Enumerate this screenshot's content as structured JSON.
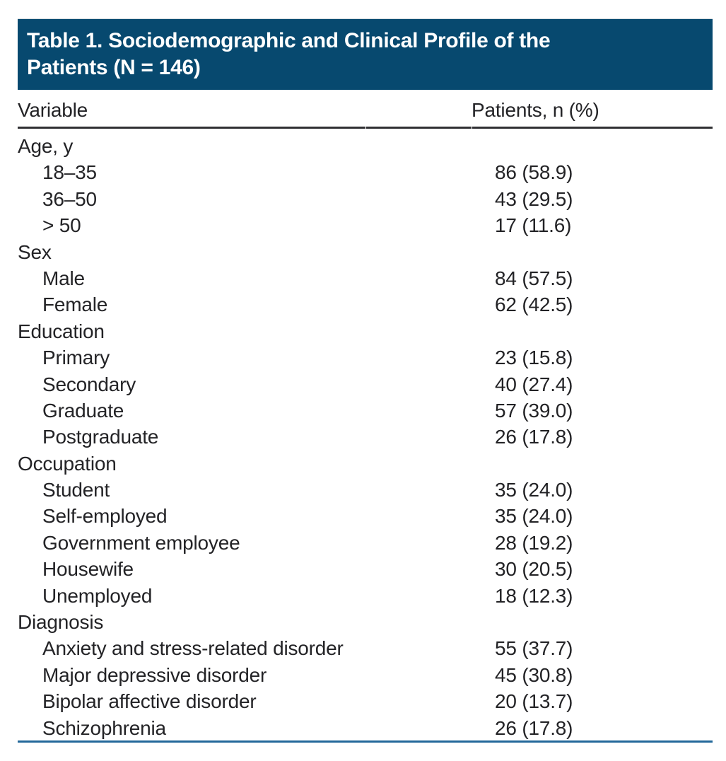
{
  "table": {
    "title_line1": "Table 1. Sociodemographic and Clinical Profile of the",
    "title_line2": "Patients (N = 146)",
    "title_full": "Table 1. Sociodemographic and Clinical Profile of the Patients (N = 146)",
    "sample_size": 146,
    "columns": {
      "variable": "Variable",
      "patients": "Patients, n (%)"
    },
    "rows": [
      {
        "type": "section",
        "label": "Age, y"
      },
      {
        "type": "item",
        "label": "18–35",
        "value": "86 (58.9)"
      },
      {
        "type": "item",
        "label": "36–50",
        "value": "43 (29.5)"
      },
      {
        "type": "item",
        "label": "> 50",
        "value": "17 (11.6)"
      },
      {
        "type": "section",
        "label": "Sex"
      },
      {
        "type": "item",
        "label": "Male",
        "value": "84 (57.5)"
      },
      {
        "type": "item",
        "label": "Female",
        "value": "62 (42.5)"
      },
      {
        "type": "section",
        "label": "Education"
      },
      {
        "type": "item",
        "label": "Primary",
        "value": "23 (15.8)"
      },
      {
        "type": "item",
        "label": "Secondary",
        "value": "40 (27.4)"
      },
      {
        "type": "item",
        "label": "Graduate",
        "value": "57 (39.0)"
      },
      {
        "type": "item",
        "label": "Postgraduate",
        "value": "26 (17.8)"
      },
      {
        "type": "section",
        "label": "Occupation"
      },
      {
        "type": "item",
        "label": "Student",
        "value": "35 (24.0)"
      },
      {
        "type": "item",
        "label": "Self-employed",
        "value": "35 (24.0)"
      },
      {
        "type": "item",
        "label": "Government employee",
        "value": "28 (19.2)"
      },
      {
        "type": "item",
        "label": "Housewife",
        "value": "30 (20.5)"
      },
      {
        "type": "item",
        "label": "Unemployed",
        "value": "18 (12.3)"
      },
      {
        "type": "section",
        "label": "Diagnosis"
      },
      {
        "type": "item",
        "label": "Anxiety and stress-related disorder",
        "value": "55 (37.7)"
      },
      {
        "type": "item",
        "label": "Major depressive disorder",
        "value": "45 (30.8)"
      },
      {
        "type": "item",
        "label": "Bipolar affective disorder",
        "value": "20 (13.7)"
      },
      {
        "type": "item",
        "label": "Schizophrenia",
        "value": "26 (17.8)"
      }
    ],
    "colors": {
      "band_bg": "#07496F",
      "band_text": "#FFFFFF",
      "body_text": "#232326",
      "header_rule": "#303033",
      "bottom_rule": "#23689A",
      "page_bg": "#FFFFFF"
    }
  }
}
